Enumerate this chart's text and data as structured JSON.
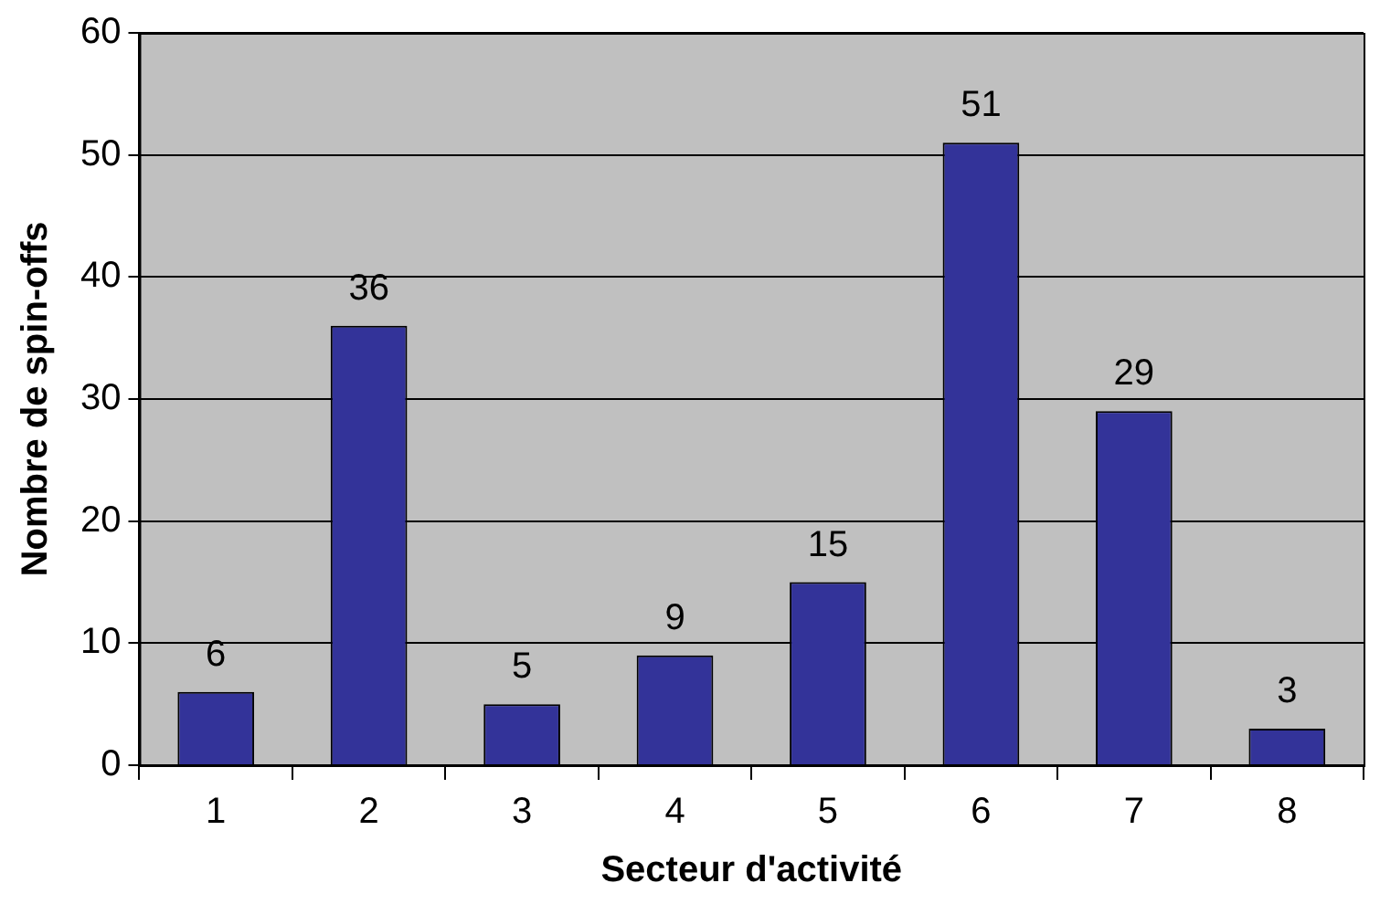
{
  "chart_data": {
    "type": "bar",
    "xlabel": "Secteur d'activité",
    "ylabel": "Nombre de spin-offs",
    "categories": [
      "1",
      "2",
      "3",
      "4",
      "5",
      "6",
      "7",
      "8"
    ],
    "values": [
      6,
      36,
      5,
      9,
      15,
      51,
      29,
      3
    ],
    "color": "#333399",
    "ylim": [
      0,
      60
    ],
    "yticks": [
      0,
      10,
      20,
      30,
      40,
      50,
      60
    ],
    "grid": "y",
    "data_labels": true,
    "legend": false
  }
}
